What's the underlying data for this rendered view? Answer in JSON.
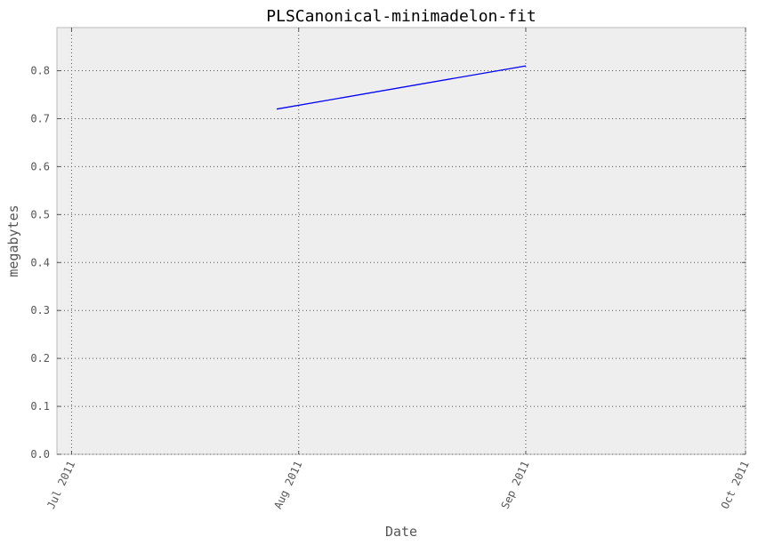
{
  "chart_data": {
    "type": "line",
    "title": "PLSCanonical-minimadelon-fit",
    "xlabel": "Date",
    "ylabel": "megabytes",
    "x_type": "date",
    "xlim": [
      "2011-06-29",
      "2011-10-01"
    ],
    "ylim": [
      0,
      0.89
    ],
    "xticks": [
      {
        "date": "2011-07-01",
        "label": "Jul 2011"
      },
      {
        "date": "2011-08-01",
        "label": "Aug 2011"
      },
      {
        "date": "2011-09-01",
        "label": "Sep 2011"
      },
      {
        "date": "2011-10-01",
        "label": "Oct 2011"
      }
    ],
    "yticks": [
      {
        "value": 0.0,
        "label": "0.0"
      },
      {
        "value": 0.1,
        "label": "0.1"
      },
      {
        "value": 0.2,
        "label": "0.2"
      },
      {
        "value": 0.3,
        "label": "0.3"
      },
      {
        "value": 0.4,
        "label": "0.4"
      },
      {
        "value": 0.5,
        "label": "0.5"
      },
      {
        "value": 0.6,
        "label": "0.6"
      },
      {
        "value": 0.7,
        "label": "0.7"
      },
      {
        "value": 0.8,
        "label": "0.8"
      }
    ],
    "series": [
      {
        "color": "#0000ff",
        "x": [
          "2011-07-29",
          "2011-09-01"
        ],
        "y": [
          0.72,
          0.81
        ]
      }
    ],
    "grid": true,
    "legend": "none",
    "background": "#eeeeee"
  }
}
